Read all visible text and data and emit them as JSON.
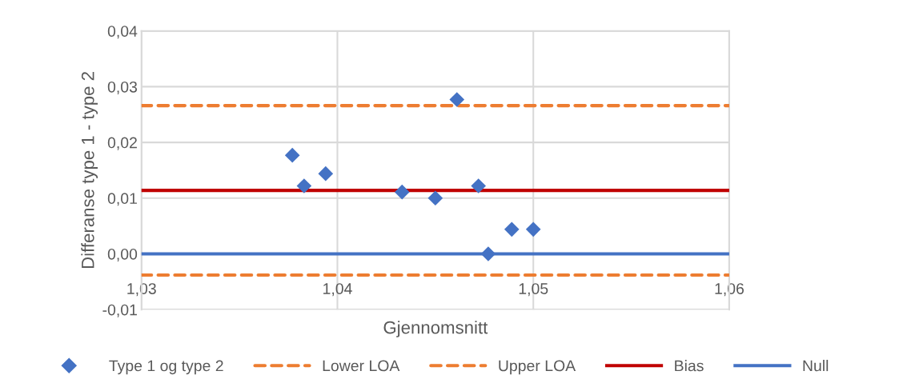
{
  "chart_data": {
    "type": "scatter",
    "xlabel": "Gjennomsnitt",
    "ylabel": "Differanse type 1 - type 2",
    "xlim": [
      1.03,
      1.06
    ],
    "ylim": [
      -0.01,
      0.04
    ],
    "xticks": [
      {
        "value": 1.03,
        "label": "1,03"
      },
      {
        "value": 1.04,
        "label": "1,04"
      },
      {
        "value": 1.05,
        "label": "1,05"
      },
      {
        "value": 1.06,
        "label": "1,06"
      }
    ],
    "yticks": [
      {
        "value": -0.01,
        "label": "-0,01"
      },
      {
        "value": 0,
        "label": "0,00"
      },
      {
        "value": 0.01,
        "label": "0,01"
      },
      {
        "value": 0.02,
        "label": "0,02"
      },
      {
        "value": 0.03,
        "label": "0,03"
      },
      {
        "value": 0.04,
        "label": "0,04"
      }
    ],
    "grid": true,
    "legend": "bottom",
    "series": [
      {
        "name": "Type 1 og type 2",
        "marker": "diamond",
        "color": "#4472c4",
        "x": [
          1.0377,
          1.0383,
          1.0394,
          1.0433,
          1.045,
          1.0461,
          1.0472,
          1.0477,
          1.0489,
          1.05
        ],
        "values": [
          0.0177,
          0.0122,
          0.0144,
          0.0111,
          0.01,
          0.0277,
          0.0122,
          0.0,
          0.0044,
          0.0044
        ]
      },
      {
        "name": "Lower LOA",
        "type": "line",
        "line_style": "dashed",
        "color": "#ed7d31",
        "x": [
          1.03,
          1.06
        ],
        "values": [
          -0.0038,
          -0.0038
        ]
      },
      {
        "name": "Upper LOA",
        "type": "line",
        "line_style": "dashed",
        "color": "#ed7d31",
        "x": [
          1.03,
          1.06
        ],
        "values": [
          0.0266,
          0.0266
        ]
      },
      {
        "name": "Bias",
        "type": "line",
        "line_style": "solid",
        "color": "#c00000",
        "x": [
          1.03,
          1.06
        ],
        "values": [
          0.0114,
          0.0114
        ]
      },
      {
        "name": "Null",
        "type": "line",
        "line_style": "solid",
        "color": "#4472c4",
        "x": [
          1.03,
          1.06
        ],
        "values": [
          0,
          0
        ]
      }
    ]
  }
}
